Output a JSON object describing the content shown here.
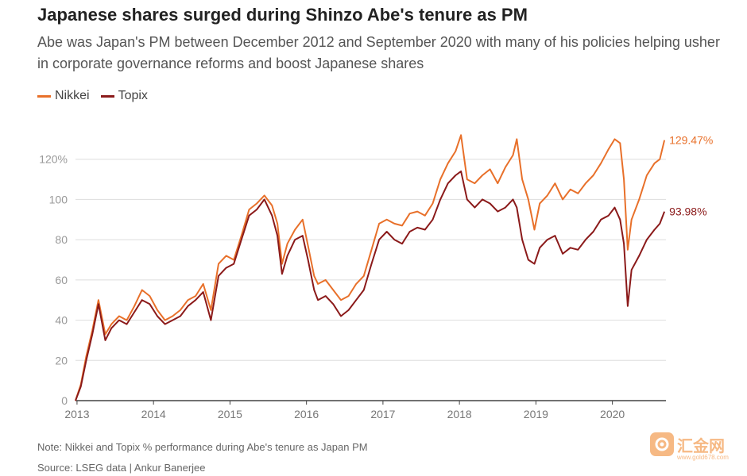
{
  "title": "Japanese shares surged during Shinzo Abe's tenure as PM",
  "subtitle": "Abe was Japan's PM between December 2012 and September 2020 with many of his policies helping usher in corporate governance reforms and boost Japanese shares",
  "note": "Note: Nikkei and Topix % performance during Abe's tenure as Japan PM",
  "source": "Source: LSEG data  | Ankur Banerjee",
  "watermark": {
    "text": "汇金网",
    "url": "www.gold678.com"
  },
  "colors": {
    "nikkei": "#e8702a",
    "topix": "#8b1a1a",
    "grid": "#dddddd",
    "axis": "#444444",
    "tick_text": "#999999"
  },
  "chart_data": {
    "type": "line",
    "xlabel": "",
    "ylabel": "",
    "x_ticks": [
      "2013",
      "2014",
      "2015",
      "2016",
      "2017",
      "2018",
      "2019",
      "2020"
    ],
    "y_ticks": [
      0,
      20,
      40,
      60,
      80,
      100,
      120
    ],
    "y_tick_labels": [
      "0",
      "20",
      "40",
      "60",
      "80",
      "100",
      "120%"
    ],
    "xlim": [
      2012.98,
      2020.7
    ],
    "ylim": [
      0,
      140
    ],
    "legend_position": "top-left",
    "series": [
      {
        "name": "Nikkei",
        "end_label": "129.47%",
        "x": [
          2012.98,
          2013.05,
          2013.12,
          2013.2,
          2013.28,
          2013.37,
          2013.45,
          2013.55,
          2013.65,
          2013.75,
          2013.85,
          2013.95,
          2014.05,
          2014.15,
          2014.25,
          2014.35,
          2014.45,
          2014.55,
          2014.65,
          2014.75,
          2014.85,
          2014.95,
          2015.05,
          2015.15,
          2015.25,
          2015.35,
          2015.45,
          2015.55,
          2015.62,
          2015.68,
          2015.75,
          2015.85,
          2015.95,
          2016.02,
          2016.1,
          2016.15,
          2016.25,
          2016.35,
          2016.45,
          2016.55,
          2016.65,
          2016.75,
          2016.85,
          2016.95,
          2017.05,
          2017.15,
          2017.25,
          2017.35,
          2017.45,
          2017.55,
          2017.65,
          2017.75,
          2017.85,
          2017.95,
          2018.02,
          2018.1,
          2018.2,
          2018.3,
          2018.4,
          2018.5,
          2018.6,
          2018.7,
          2018.75,
          2018.82,
          2018.9,
          2018.98,
          2019.05,
          2019.15,
          2019.25,
          2019.35,
          2019.45,
          2019.55,
          2019.65,
          2019.75,
          2019.85,
          2019.95,
          2020.03,
          2020.1,
          2020.15,
          2020.2,
          2020.25,
          2020.35,
          2020.45,
          2020.55,
          2020.62,
          2020.68
        ],
        "values": [
          0,
          8,
          22,
          35,
          50,
          33,
          38,
          42,
          40,
          47,
          55,
          52,
          45,
          40,
          42,
          45,
          50,
          52,
          58,
          45,
          68,
          72,
          70,
          82,
          95,
          98,
          102,
          97,
          88,
          68,
          78,
          85,
          90,
          77,
          62,
          58,
          60,
          55,
          50,
          52,
          58,
          62,
          75,
          88,
          90,
          88,
          87,
          93,
          94,
          92,
          98,
          110,
          118,
          124,
          132,
          110,
          108,
          112,
          115,
          108,
          116,
          122,
          130,
          110,
          100,
          85,
          98,
          102,
          108,
          100,
          105,
          103,
          108,
          112,
          118,
          125,
          130,
          128,
          110,
          75,
          90,
          100,
          112,
          118,
          120,
          129.47
        ]
      },
      {
        "name": "Topix",
        "end_label": "93.98%",
        "x": [
          2012.98,
          2013.05,
          2013.12,
          2013.2,
          2013.28,
          2013.37,
          2013.45,
          2013.55,
          2013.65,
          2013.75,
          2013.85,
          2013.95,
          2014.05,
          2014.15,
          2014.25,
          2014.35,
          2014.45,
          2014.55,
          2014.65,
          2014.75,
          2014.85,
          2014.95,
          2015.05,
          2015.15,
          2015.25,
          2015.35,
          2015.45,
          2015.55,
          2015.62,
          2015.68,
          2015.75,
          2015.85,
          2015.95,
          2016.02,
          2016.1,
          2016.15,
          2016.25,
          2016.35,
          2016.45,
          2016.55,
          2016.65,
          2016.75,
          2016.85,
          2016.95,
          2017.05,
          2017.15,
          2017.25,
          2017.35,
          2017.45,
          2017.55,
          2017.65,
          2017.75,
          2017.85,
          2017.95,
          2018.02,
          2018.1,
          2018.2,
          2018.3,
          2018.4,
          2018.5,
          2018.6,
          2018.7,
          2018.75,
          2018.82,
          2018.9,
          2018.98,
          2019.05,
          2019.15,
          2019.25,
          2019.35,
          2019.45,
          2019.55,
          2019.65,
          2019.75,
          2019.85,
          2019.95,
          2020.03,
          2020.1,
          2020.15,
          2020.2,
          2020.25,
          2020.35,
          2020.45,
          2020.55,
          2020.62,
          2020.68
        ],
        "values": [
          0,
          7,
          20,
          33,
          48,
          30,
          36,
          40,
          38,
          44,
          50,
          48,
          42,
          38,
          40,
          42,
          47,
          50,
          54,
          40,
          62,
          66,
          68,
          80,
          92,
          95,
          100,
          92,
          82,
          63,
          72,
          80,
          82,
          70,
          55,
          50,
          52,
          48,
          42,
          45,
          50,
          55,
          68,
          80,
          84,
          80,
          78,
          84,
          86,
          85,
          90,
          100,
          108,
          112,
          114,
          100,
          96,
          100,
          98,
          94,
          96,
          100,
          96,
          80,
          70,
          68,
          76,
          80,
          82,
          73,
          76,
          75,
          80,
          84,
          90,
          92,
          96,
          90,
          78,
          47,
          65,
          72,
          80,
          85,
          88,
          93.98
        ]
      }
    ]
  }
}
